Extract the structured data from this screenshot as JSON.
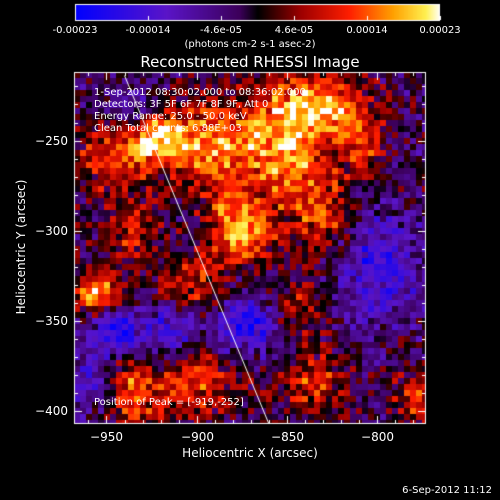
{
  "chart_data": {
    "type": "heatmap",
    "title": "Reconstructed RHESSI Image",
    "xlabel": "Heliocentric X (arcsec)",
    "ylabel": "Heliocentric Y (arcsec)",
    "xlim": [
      -968,
      -773
    ],
    "ylim": [
      -407,
      -212
    ],
    "xticks": [
      -950,
      -900,
      -850,
      -800
    ],
    "yticks": [
      -250,
      -300,
      -350,
      -400
    ],
    "colorbar": {
      "ticks": [
        "-0.00023",
        "-0.00014",
        "-4.6e-05",
        "4.6e-05",
        "0.00014",
        "0.00023"
      ],
      "unit": "(photons cm-2 s-1 asec-2)",
      "min": -0.00023,
      "max": 0.00023
    },
    "annotations": {
      "time_range": "1-Sep-2012 08:30:02.000 to 08:36:02.000",
      "detectors": "Detectors: 3F 5F 6F 7F 8F 9F, Att 0",
      "energy": "Energy Range: 25.0 - 50.0 keV",
      "clean": "Clean    Total counts: 6.88E+03",
      "peak": "Position of Peak = [-919,-252]"
    },
    "limb_line": {
      "x": [
        -940,
        -860
      ],
      "y": [
        -214,
        -407
      ]
    },
    "peak_position": [
      -919,
      -252
    ],
    "hotspots": [
      {
        "x": -920,
        "y": -248,
        "amp": 1.0,
        "sx": 12,
        "sy": 10
      },
      {
        "x": -945,
        "y": -258,
        "amp": 0.7,
        "sx": 14,
        "sy": 14
      },
      {
        "x": -955,
        "y": -335,
        "amp": 0.95,
        "sx": 9,
        "sy": 9
      },
      {
        "x": -888,
        "y": -255,
        "amp": 0.8,
        "sx": 16,
        "sy": 20
      },
      {
        "x": -875,
        "y": -300,
        "amp": 0.95,
        "sx": 12,
        "sy": 12
      },
      {
        "x": -852,
        "y": -252,
        "amp": 0.85,
        "sx": 14,
        "sy": 22
      },
      {
        "x": -830,
        "y": -230,
        "amp": 0.8,
        "sx": 16,
        "sy": 12
      },
      {
        "x": -830,
        "y": -290,
        "amp": 0.6,
        "sx": 12,
        "sy": 18
      },
      {
        "x": -808,
        "y": -250,
        "amp": 0.55,
        "sx": 10,
        "sy": 14
      },
      {
        "x": -900,
        "y": -330,
        "amp": 0.55,
        "sx": 14,
        "sy": 12
      },
      {
        "x": -935,
        "y": -300,
        "amp": 0.5,
        "sx": 10,
        "sy": 14
      },
      {
        "x": -850,
        "y": -345,
        "amp": 0.55,
        "sx": 14,
        "sy": 12
      },
      {
        "x": -900,
        "y": -385,
        "amp": 0.6,
        "sx": 16,
        "sy": 14
      },
      {
        "x": -935,
        "y": -390,
        "amp": 0.7,
        "sx": 10,
        "sy": 14
      },
      {
        "x": -835,
        "y": -385,
        "amp": 0.55,
        "sx": 14,
        "sy": 12
      },
      {
        "x": -780,
        "y": -395,
        "amp": 0.5,
        "sx": 8,
        "sy": 12
      }
    ],
    "coldspots": [
      {
        "x": -945,
        "y": -355,
        "amp": -0.8,
        "sx": 10,
        "sy": 10
      },
      {
        "x": -935,
        "y": -235,
        "amp": -0.5,
        "sx": 10,
        "sy": 10
      },
      {
        "x": -870,
        "y": -350,
        "amp": -0.9,
        "sx": 14,
        "sy": 12
      },
      {
        "x": -800,
        "y": -320,
        "amp": -0.6,
        "sx": 16,
        "sy": 20
      },
      {
        "x": -915,
        "y": -355,
        "amp": -0.6,
        "sx": 10,
        "sy": 10
      },
      {
        "x": -960,
        "y": -385,
        "amp": -0.4,
        "sx": 10,
        "sy": 10
      }
    ]
  }
}
